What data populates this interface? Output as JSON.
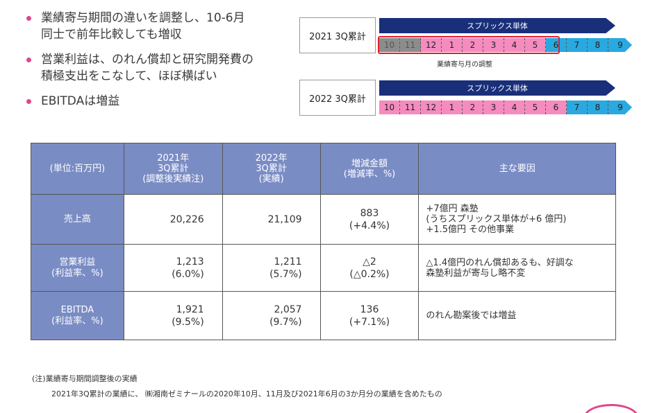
{
  "bullets": [
    "業績寄与期間の違いを調整し、10-6月\n同士で前年比較しても増収",
    "営業利益は、のれん償却と研究開発費の\n積極支出をこなして、ほぼ横ばい",
    "EBITDAは増益"
  ],
  "periods": [
    {
      "label": "2021 3Q累計",
      "bar_label": "スプリックス単体",
      "months": [
        "10",
        "11",
        "12",
        "1",
        "2",
        "3",
        "4",
        "5",
        "6",
        "7",
        "8",
        "9"
      ],
      "note": "業績寄与月の調整"
    },
    {
      "label": "2022 3Q累計",
      "bar_label": "スプリックス単体",
      "months": [
        "10",
        "11",
        "12",
        "1",
        "2",
        "3",
        "4",
        "5",
        "6",
        "7",
        "8",
        "9"
      ]
    }
  ],
  "table": {
    "headers": [
      "(単位:百万円)",
      "2021年\n3Q累計\n(調整後実績注)",
      "2022年\n3Q累計\n(実績)",
      "増減金額\n(増減率、%)",
      "主な要因"
    ],
    "rows": [
      {
        "label": "売上高",
        "v2021": "20,226",
        "v2022": "21,109",
        "diff": "883\n(+4.4%)",
        "factor": "+7億円 森塾\n(うちスプリックス単体が+6 億円)\n+1.5億円 その他事業"
      },
      {
        "label": "営業利益\n(利益率、%)",
        "v2021": "1,213\n(6.0%)",
        "v2022": "1,211\n(5.7%)",
        "diff": "△2\n(△0.2%)",
        "factor": "△1.4億円のれん償却あるも、好調な\n森塾利益が寄与し略不変"
      },
      {
        "label": "EBITDA\n(利益率、%)",
        "v2021": "1,921\n(9.5%)",
        "v2022": "2,057\n(9.7%)",
        "diff": "136\n(+7.1%)",
        "factor": "のれん勘案後では増益"
      }
    ]
  },
  "notes": {
    "title": "(注)業績寄与期間調整後の実績",
    "body": "2021年3Q累計の業績に、 ㈱湘南ゼミナールの2020年10月、11月及び2021年6月の3か月分の業績を含めたもの"
  },
  "colors": {
    "accent_pink": "#e0468a",
    "navy": "#1a2f7a",
    "table_header": "#7a8cc4",
    "month_gray": "#8c8c8c",
    "month_pink": "#f58bbf",
    "month_blue": "#29a9e0",
    "highlight_red": "#e2202b"
  }
}
